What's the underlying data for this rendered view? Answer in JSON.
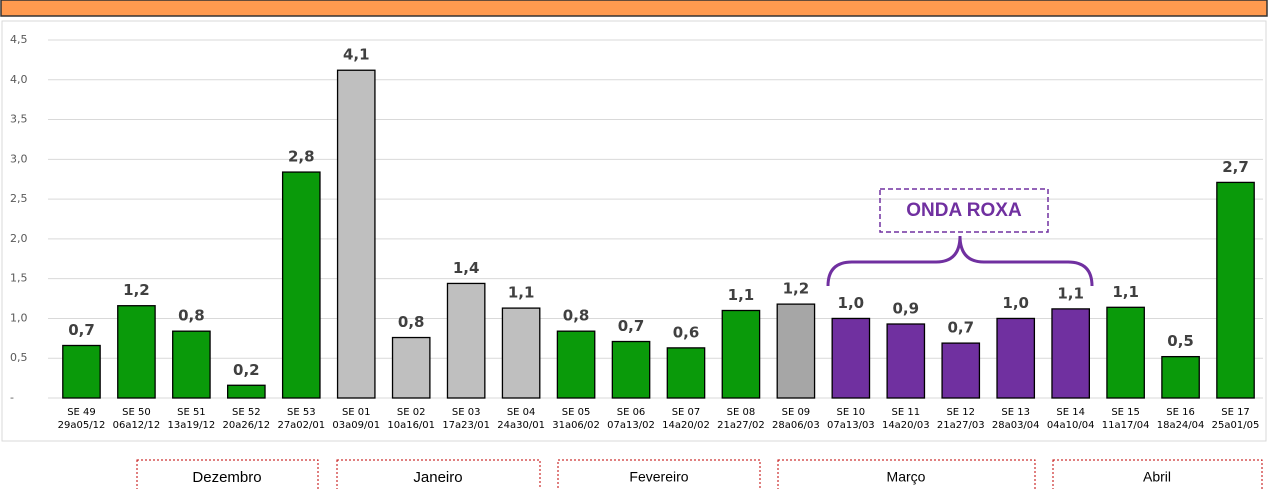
{
  "chart_data": {
    "type": "bar",
    "categories": [
      "SE 49",
      "SE 50",
      "SE 51",
      "SE 52",
      "SE 53",
      "SE 01",
      "SE 02",
      "SE 03",
      "SE 04",
      "SE 05",
      "SE 06",
      "SE 07",
      "SE 08",
      "SE 09",
      "SE 10",
      "SE 11",
      "SE 12",
      "SE 13",
      "SE 14",
      "SE 15",
      "SE 16",
      "SE 17"
    ],
    "periods": [
      "29a05/12",
      "06a12/12",
      "13a19/12",
      "20a26/12",
      "27a02/01",
      "03a09/01",
      "10a16/01",
      "17a23/01",
      "24a30/01",
      "31a06/02",
      "07a13/02",
      "14a20/02",
      "21a27/02",
      "28a06/03",
      "07a13/03",
      "14a20/03",
      "21a27/03",
      "28a03/04",
      "04a10/04",
      "11a17/04",
      "18a24/04",
      "25a01/05"
    ],
    "values": [
      0.66,
      1.16,
      0.84,
      0.16,
      2.84,
      4.12,
      0.76,
      1.44,
      1.13,
      0.84,
      0.71,
      0.63,
      1.1,
      1.18,
      1.0,
      0.93,
      0.69,
      1.0,
      1.12,
      1.14,
      0.52,
      2.71
    ],
    "value_labels": [
      "0,7",
      "1,2",
      "0,8",
      "0,2",
      "2,8",
      "4,1",
      "0,8",
      "1,4",
      "1,1",
      "0,8",
      "0,7",
      "0,6",
      "1,1",
      "1,2",
      "1,0",
      "0,9",
      "0,7",
      "1,0",
      "1,1",
      "1,1",
      "0,5",
      "2,7"
    ],
    "colors": [
      "#0a9a0a",
      "#0a9a0a",
      "#0a9a0a",
      "#0a9a0a",
      "#0a9a0a",
      "#bfbfbf",
      "#bfbfbf",
      "#bfbfbf",
      "#bfbfbf",
      "#0a9a0a",
      "#0a9a0a",
      "#0a9a0a",
      "#0a9a0a",
      "#a6a6a6",
      "#7030a0",
      "#7030a0",
      "#7030a0",
      "#7030a0",
      "#7030a0",
      "#0a9a0a",
      "#0a9a0a",
      "#0a9a0a"
    ],
    "ylim": [
      0,
      4.5
    ],
    "yticks": [
      {
        "value": 0,
        "label": "-"
      },
      {
        "value": 0.5,
        "label": "0,5"
      },
      {
        "value": 1,
        "label": "1,0"
      },
      {
        "value": 1.5,
        "label": "1,5"
      },
      {
        "value": 2,
        "label": "2,0"
      },
      {
        "value": 2.5,
        "label": "2,5"
      },
      {
        "value": 3,
        "label": "3,0"
      },
      {
        "value": 3.5,
        "label": "3,5"
      },
      {
        "value": 4,
        "label": "4,0"
      },
      {
        "value": 4.5,
        "label": "4,5"
      }
    ],
    "grid": true,
    "annotation": "ONDA ROXA",
    "months": [
      "Dezembro",
      "Janeiro",
      "Fevereiro",
      "Março",
      "Abril"
    ]
  }
}
